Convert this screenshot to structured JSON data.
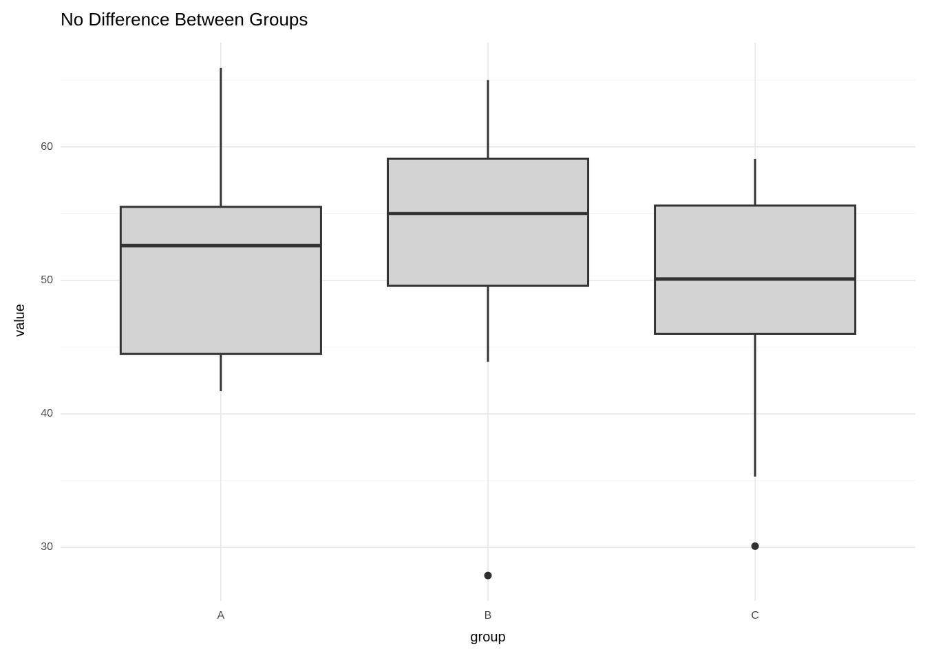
{
  "chart_data": {
    "type": "boxplot",
    "title": "No Difference Between Groups",
    "xlabel": "group",
    "ylabel": "value",
    "categories": [
      "A",
      "B",
      "C"
    ],
    "y_ticks": [
      30,
      40,
      50,
      60
    ],
    "y_minor_ticks": [
      35,
      45,
      55,
      65
    ],
    "ylim": [
      26.0,
      67.8
    ],
    "grid": true,
    "legend": "none",
    "series": [
      {
        "group": "A",
        "whisker_low": 41.7,
        "q1": 44.5,
        "median": 52.6,
        "q3": 55.5,
        "whisker_high": 65.9,
        "outliers": []
      },
      {
        "group": "B",
        "whisker_low": 43.9,
        "q1": 49.6,
        "median": 55.0,
        "q3": 59.1,
        "whisker_high": 65.0,
        "outliers": [
          27.9
        ]
      },
      {
        "group": "C",
        "whisker_low": 35.3,
        "q1": 46.0,
        "median": 50.1,
        "q3": 55.6,
        "whisker_high": 59.1,
        "outliers": [
          30.1
        ]
      }
    ],
    "colors": {
      "box_fill": "#d3d3d3",
      "box_stroke": "#333333",
      "median_stroke": "#333333",
      "outlier_fill": "#2e2e2e",
      "grid_major": "#e6e6e6",
      "grid_minor": "#f2f2f2",
      "tick_label": "#4d4d4d",
      "title": "#000000",
      "background": "#ffffff"
    }
  }
}
